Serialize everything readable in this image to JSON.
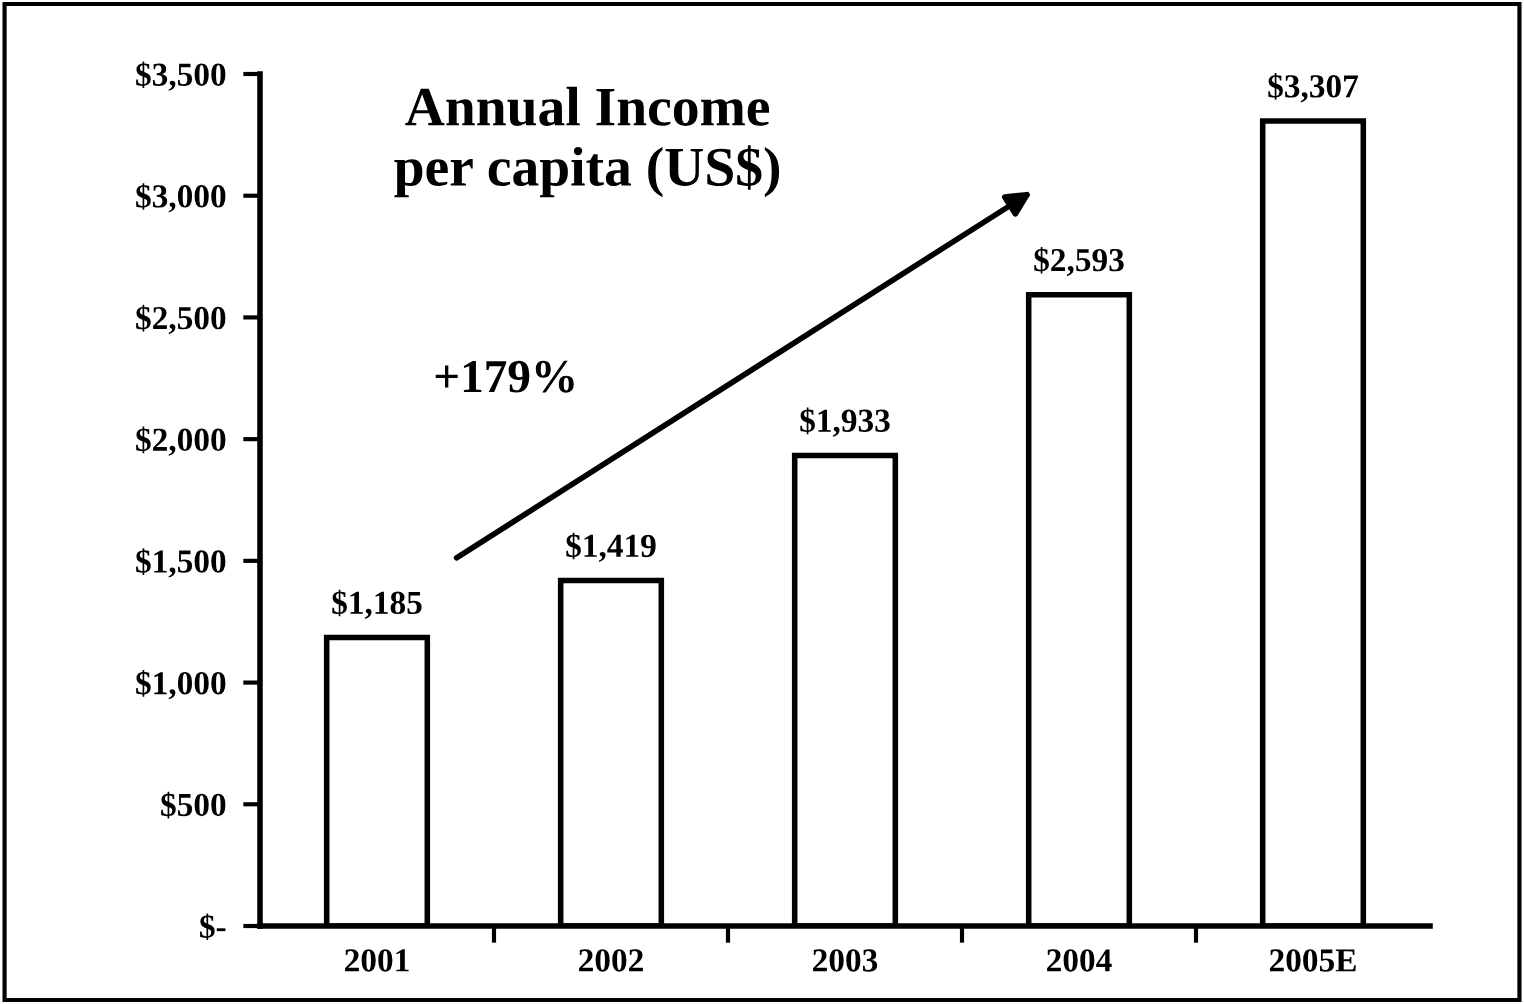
{
  "chart_data": {
    "type": "bar",
    "title": "Annual Income\nper capita (US$)",
    "categories": [
      "2001",
      "2002",
      "2003",
      "2004",
      "2005E"
    ],
    "values": [
      1185,
      1419,
      1933,
      2593,
      3307
    ],
    "value_labels": [
      "$1,185",
      "$1,419",
      "$1,933",
      "$2,593",
      "$3,307"
    ],
    "color": "#ffffff",
    "ylim": [
      0,
      3500
    ],
    "yticks": [
      {
        "value": 0,
        "label": "$-"
      },
      {
        "value": 500,
        "label": "$500"
      },
      {
        "value": 1000,
        "label": "$1,000"
      },
      {
        "value": 1500,
        "label": "$1,500"
      },
      {
        "value": 2000,
        "label": "$2,000"
      },
      {
        "value": 2500,
        "label": "$2,500"
      },
      {
        "value": 3000,
        "label": "$3,000"
      },
      {
        "value": 3500,
        "label": "$3,500"
      }
    ],
    "annotations": [
      "+179%"
    ],
    "grid": false,
    "legend": false
  }
}
